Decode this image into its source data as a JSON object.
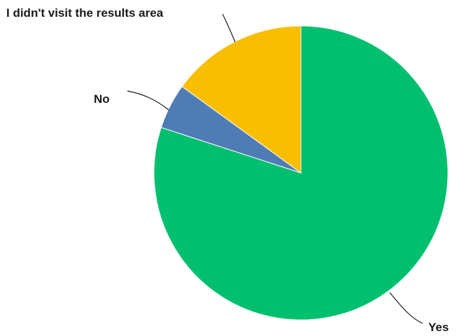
{
  "chart_data": {
    "type": "pie",
    "title": "",
    "slices": [
      {
        "label": "Yes",
        "value": 80,
        "color": "#00bf6f"
      },
      {
        "label": "No",
        "value": 5,
        "color": "#507cb6"
      },
      {
        "label": "I didn't visit the results area",
        "value": 15,
        "color": "#f9be00"
      }
    ],
    "start": "12 o'clock",
    "direction": "clockwise",
    "legend": "none",
    "labels": "outside with leader lines"
  }
}
